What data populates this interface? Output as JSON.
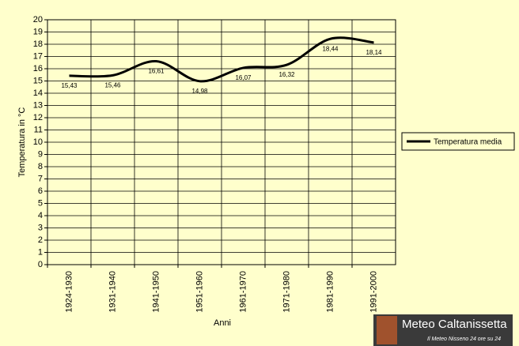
{
  "chart_data": {
    "type": "line",
    "y_label": "Temperatura in °C",
    "x_label": "Anni",
    "categories": [
      "1924-1930",
      "1931-1940",
      "1941-1950",
      "1951-1960",
      "1961-1970",
      "1971-1980",
      "1981-1990",
      "1991-2000"
    ],
    "series": [
      {
        "name": "Temperatura media",
        "color": "#000000",
        "values": [
          15.43,
          15.46,
          16.61,
          14.98,
          16.07,
          16.32,
          18.44,
          18.14
        ],
        "value_labels": [
          "15,43",
          "15,46",
          "16,61",
          "14,98",
          "16,07",
          "16,32",
          "18,44",
          "18,14"
        ]
      }
    ],
    "ylim": [
      0,
      20
    ],
    "yticks": [
      0,
      1,
      2,
      3,
      4,
      5,
      6,
      7,
      8,
      9,
      10,
      11,
      12,
      13,
      14,
      15,
      16,
      17,
      18,
      19,
      20
    ],
    "grid": true,
    "legend": "right"
  },
  "watermark": {
    "title": "Meteo Caltanissetta",
    "subtitle": "Il Meteo Nisseno 24 ore su 24"
  }
}
